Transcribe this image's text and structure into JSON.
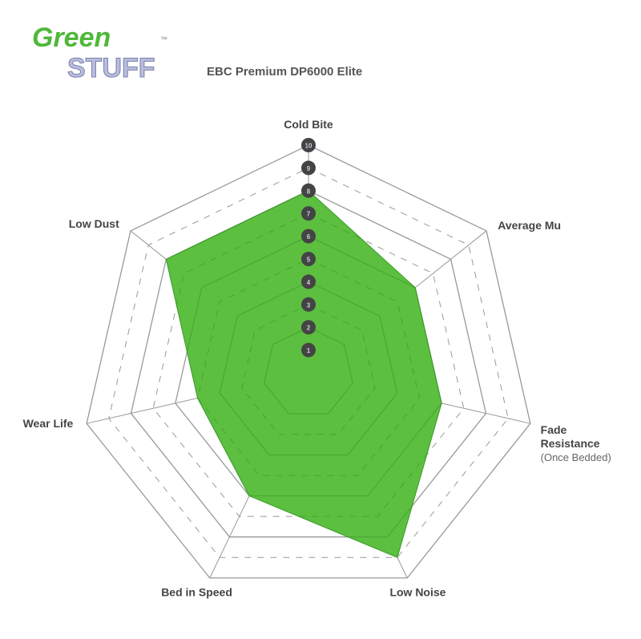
{
  "logo": {
    "line1": "Green",
    "line2": "STUFF",
    "tm": "™"
  },
  "chart_data": {
    "type": "radar",
    "title": "EBC Premium DP6000 Elite",
    "axes": [
      "Cold Bite",
      "Average Mu",
      "Fade Resistance",
      "Low Noise",
      "Bed in Speed",
      "Wear Life",
      "Low Dust"
    ],
    "axis_sublabels": {
      "Fade Resistance": "(Once Bedded)"
    },
    "scale": {
      "min": 0,
      "max": 10,
      "ticks": [
        "1",
        "2",
        "3",
        "4",
        "5",
        "6",
        "7",
        "8",
        "9",
        "10"
      ]
    },
    "values": [
      8,
      6,
      6,
      9,
      6,
      5,
      8
    ],
    "colors": {
      "fill": "#5cbf3f",
      "stroke": "#3a9a2a",
      "grid": "#999999",
      "tick_badge": "#444444"
    }
  }
}
